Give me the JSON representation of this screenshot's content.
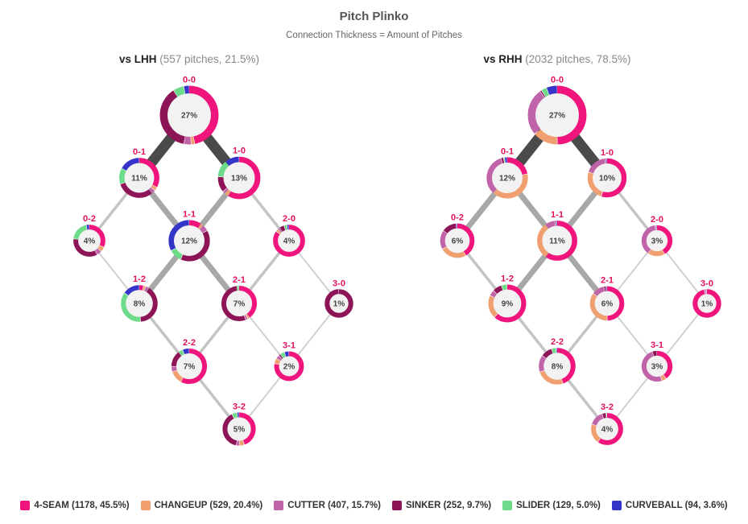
{
  "title": "Pitch Plinko",
  "subtitle": "Connection Thickness = Amount of Pitches",
  "panels": [
    {
      "name": "vs LHH",
      "detail": "(557 pitches, 21.5%)"
    },
    {
      "name": "vs RHH",
      "detail": "(2032 pitches, 78.5%)"
    }
  ],
  "legend": [
    {
      "label": "4-SEAM (1178, 45.5%)",
      "color": "#f0157c"
    },
    {
      "label": "CHANGEUP (529, 20.4%)",
      "color": "#f0a070"
    },
    {
      "label": "CUTTER (407, 15.7%)",
      "color": "#c063a8"
    },
    {
      "label": "SINKER (252, 9.7%)",
      "color": "#8e1458"
    },
    {
      "label": "SLIDER (129, 5.0%)",
      "color": "#6ddb8a"
    },
    {
      "label": "CURVEBALL (94, 3.6%)",
      "color": "#3434c8"
    }
  ],
  "chart_data": [
    {
      "type": "donut-network",
      "title": "vs LHH (557 pitches, 21.5%)",
      "pitch_types": [
        "4-SEAM",
        "CHANGEUP",
        "CUTTER",
        "SINKER",
        "SLIDER",
        "CURVEBALL"
      ],
      "nodes": [
        {
          "count": "0-0",
          "pct": "27%",
          "mix": [
            47,
            2,
            4,
            38,
            6,
            3
          ]
        },
        {
          "count": "0-1",
          "pct": "11%",
          "mix": [
            33,
            3,
            3,
            31,
            13,
            17
          ]
        },
        {
          "count": "1-0",
          "pct": "13%",
          "mix": [
            59,
            3,
            2,
            12,
            13,
            11
          ]
        },
        {
          "count": "0-2",
          "pct": "4%",
          "mix": [
            32,
            5,
            5,
            35,
            20,
            3
          ]
        },
        {
          "count": "1-1",
          "pct": "12%",
          "mix": [
            10,
            2,
            5,
            40,
            10,
            33
          ]
        },
        {
          "count": "2-0",
          "pct": "4%",
          "mix": [
            85,
            3,
            2,
            5,
            3,
            2
          ]
        },
        {
          "count": "1-2",
          "pct": "8%",
          "mix": [
            4,
            2,
            3,
            40,
            36,
            15
          ]
        },
        {
          "count": "2-1",
          "pct": "7%",
          "mix": [
            40,
            2,
            2,
            54,
            2,
            0
          ]
        },
        {
          "count": "3-0",
          "pct": "1%",
          "mix": [
            0,
            0,
            0,
            100,
            0,
            0
          ]
        },
        {
          "count": "2-2",
          "pct": "7%",
          "mix": [
            58,
            12,
            5,
            15,
            4,
            6
          ]
        },
        {
          "count": "3-1",
          "pct": "2%",
          "mix": [
            78,
            6,
            4,
            2,
            5,
            5
          ]
        },
        {
          "count": "3-2",
          "pct": "5%",
          "mix": [
            45,
            5,
            3,
            40,
            5,
            2
          ]
        }
      ],
      "edges": [
        {
          "from": "0-0",
          "to": "0-1",
          "weight": 11
        },
        {
          "from": "0-0",
          "to": "1-0",
          "weight": 13
        },
        {
          "from": "0-1",
          "to": "0-2",
          "weight": 3
        },
        {
          "from": "0-1",
          "to": "1-1",
          "weight": 6
        },
        {
          "from": "1-0",
          "to": "1-1",
          "weight": 8
        },
        {
          "from": "1-0",
          "to": "2-0",
          "weight": 3
        },
        {
          "from": "0-2",
          "to": "1-2",
          "weight": 2
        },
        {
          "from": "1-1",
          "to": "1-2",
          "weight": 7
        },
        {
          "from": "1-1",
          "to": "2-1",
          "weight": 5
        },
        {
          "from": "2-0",
          "to": "2-1",
          "weight": 3
        },
        {
          "from": "2-0",
          "to": "3-0",
          "weight": 1
        },
        {
          "from": "1-2",
          "to": "2-2",
          "weight": 3
        },
        {
          "from": "2-1",
          "to": "2-2",
          "weight": 3
        },
        {
          "from": "2-1",
          "to": "3-1",
          "weight": 2
        },
        {
          "from": "3-0",
          "to": "3-1",
          "weight": 1
        },
        {
          "from": "2-2",
          "to": "3-2",
          "weight": 3
        },
        {
          "from": "3-1",
          "to": "3-2",
          "weight": 1
        }
      ]
    },
    {
      "type": "donut-network",
      "title": "vs RHH (2032 pitches, 78.5%)",
      "pitch_types": [
        "4-SEAM",
        "CHANGEUP",
        "CUTTER",
        "SINKER",
        "SLIDER",
        "CURVEBALL"
      ],
      "nodes": [
        {
          "count": "0-0",
          "pct": "27%",
          "mix": [
            50,
            14,
            26,
            1,
            3,
            6
          ]
        },
        {
          "count": "0-1",
          "pct": "12%",
          "mix": [
            22,
            40,
            33,
            2,
            1,
            2
          ]
        },
        {
          "count": "1-0",
          "pct": "10%",
          "mix": [
            55,
            25,
            18,
            1,
            0,
            1
          ]
        },
        {
          "count": "0-2",
          "pct": "6%",
          "mix": [
            42,
            25,
            18,
            14,
            0,
            1
          ]
        },
        {
          "count": "1-1",
          "pct": "11%",
          "mix": [
            60,
            30,
            8,
            1,
            0,
            1
          ]
        },
        {
          "count": "2-0",
          "pct": "3%",
          "mix": [
            42,
            18,
            38,
            1,
            0,
            1
          ]
        },
        {
          "count": "1-2",
          "pct": "9%",
          "mix": [
            62,
            20,
            5,
            8,
            5,
            0
          ]
        },
        {
          "count": "2-1",
          "pct": "6%",
          "mix": [
            50,
            35,
            12,
            2,
            0,
            1
          ]
        },
        {
          "count": "3-0",
          "pct": "1%",
          "mix": [
            97,
            0,
            2,
            1,
            0,
            0
          ]
        },
        {
          "count": "2-2",
          "pct": "8%",
          "mix": [
            45,
            25,
            15,
            10,
            4,
            1
          ]
        },
        {
          "count": "3-1",
          "pct": "3%",
          "mix": [
            40,
            5,
            50,
            5,
            0,
            0
          ]
        },
        {
          "count": "3-2",
          "pct": "4%",
          "mix": [
            60,
            20,
            15,
            4,
            1,
            0
          ]
        }
      ],
      "edges": [
        {
          "from": "0-0",
          "to": "0-1",
          "weight": 12
        },
        {
          "from": "0-0",
          "to": "1-0",
          "weight": 10
        },
        {
          "from": "0-1",
          "to": "0-2",
          "weight": 5
        },
        {
          "from": "0-1",
          "to": "1-1",
          "weight": 6
        },
        {
          "from": "1-0",
          "to": "1-1",
          "weight": 5
        },
        {
          "from": "1-0",
          "to": "2-0",
          "weight": 3
        },
        {
          "from": "0-2",
          "to": "1-2",
          "weight": 4
        },
        {
          "from": "1-1",
          "to": "1-2",
          "weight": 5
        },
        {
          "from": "1-1",
          "to": "2-1",
          "weight": 5
        },
        {
          "from": "2-0",
          "to": "2-1",
          "weight": 2
        },
        {
          "from": "2-0",
          "to": "3-0",
          "weight": 1
        },
        {
          "from": "1-2",
          "to": "2-2",
          "weight": 4
        },
        {
          "from": "2-1",
          "to": "2-2",
          "weight": 3
        },
        {
          "from": "2-1",
          "to": "3-1",
          "weight": 2
        },
        {
          "from": "3-0",
          "to": "3-1",
          "weight": 1
        },
        {
          "from": "2-2",
          "to": "3-2",
          "weight": 3
        },
        {
          "from": "3-1",
          "to": "3-2",
          "weight": 2
        }
      ]
    }
  ]
}
